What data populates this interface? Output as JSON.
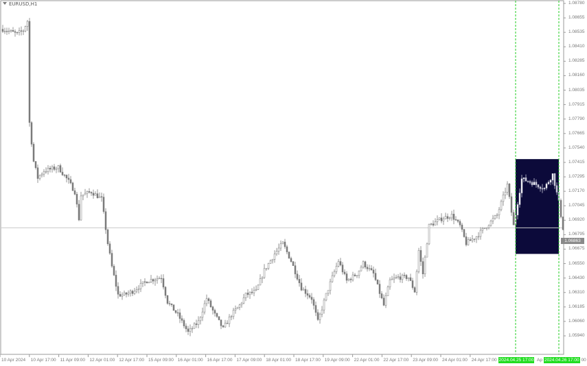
{
  "window": {
    "title": "EURUSD,H1"
  },
  "colors": {
    "candle": "#7a7a7a",
    "candle_in_box": "#c8c8d8",
    "box_fill": "#0c0a3a",
    "vline": "#22cc22",
    "current_price_line": "#c8c8c8",
    "time_highlight": "#22dd22"
  },
  "chart_data": {
    "type": "candlestick",
    "symbol": "EURUSD",
    "timeframe": "H1",
    "ylim": [
      1.0594,
      1.0878
    ],
    "y_ticks": [
      "1.08780",
      "1.08655",
      "1.08535",
      "1.08410",
      "1.08285",
      "1.08160",
      "1.08035",
      "1.07915",
      "1.07790",
      "1.07665",
      "1.07540",
      "1.07415",
      "1.07295",
      "1.07170",
      "1.07045",
      "1.06920",
      "1.06795",
      "1.06675",
      "1.06550",
      "1.06430",
      "1.06310",
      "1.06185",
      "1.06060",
      "1.05940"
    ],
    "x_ticks": [
      "10 Apr 2024",
      "10 Apr 17:00",
      "11 Apr 09:00",
      "12 Apr 01:00",
      "12 Apr 17:00",
      "15 Apr 09:00",
      "16 Apr 01:00",
      "16 Apr 17:00",
      "17 Apr 09:00",
      "18 Apr 01:00",
      "18 Apr 17:00",
      "19 Apr 09:00",
      "22 Apr 01:00",
      "22 Apr 17:00",
      "23 Apr 09:00",
      "24 Apr 01:00",
      "24 Apr 17:00"
    ],
    "x_tick_fragments": [
      "Ap",
      "00"
    ],
    "highlighted_times": [
      "2024.04.25 17:00",
      "2024.04.26 17:00"
    ],
    "current_price": "1.06863",
    "price_path": [
      [
        0,
        1.0856
      ],
      [
        7,
        1.0852
      ],
      [
        10,
        1.0855
      ],
      [
        12,
        1.0863
      ],
      [
        13,
        1.0776
      ],
      [
        15,
        1.0743
      ],
      [
        17,
        1.0729
      ],
      [
        20,
        1.0735
      ],
      [
        27,
        1.0738
      ],
      [
        32,
        1.0726
      ],
      [
        35,
        1.0717
      ],
      [
        37,
        1.0694
      ],
      [
        38,
        1.0714
      ],
      [
        43,
        1.0717
      ],
      [
        48,
        1.0711
      ],
      [
        51,
        1.0673
      ],
      [
        53,
        1.0653
      ],
      [
        56,
        1.0629
      ],
      [
        59,
        1.0629
      ],
      [
        63,
        1.0632
      ],
      [
        70,
        1.0641
      ],
      [
        77,
        1.0644
      ],
      [
        80,
        1.0623
      ],
      [
        85,
        1.0612
      ],
      [
        90,
        1.0597
      ],
      [
        95,
        1.0606
      ],
      [
        99,
        1.0626
      ],
      [
        103,
        1.0612
      ],
      [
        107,
        1.06
      ],
      [
        111,
        1.0612
      ],
      [
        115,
        1.062
      ],
      [
        118,
        1.0629
      ],
      [
        123,
        1.0632
      ],
      [
        127,
        1.065
      ],
      [
        132,
        1.0664
      ],
      [
        136,
        1.0673
      ],
      [
        140,
        1.0658
      ],
      [
        145,
        1.0635
      ],
      [
        150,
        1.0626
      ],
      [
        153,
        1.0606
      ],
      [
        157,
        1.0629
      ],
      [
        160,
        1.0644
      ],
      [
        163,
        1.0658
      ],
      [
        167,
        1.0641
      ],
      [
        172,
        1.0647
      ],
      [
        175,
        1.0656
      ],
      [
        180,
        1.0647
      ],
      [
        185,
        1.062
      ],
      [
        188,
        1.0641
      ],
      [
        192,
        1.0644
      ],
      [
        197,
        1.0644
      ],
      [
        200,
        1.0632
      ],
      [
        202,
        1.0667
      ],
      [
        204,
        1.0647
      ],
      [
        207,
        1.0688
      ],
      [
        213,
        1.0694
      ],
      [
        218,
        1.0697
      ],
      [
        222,
        1.0688
      ],
      [
        225,
        1.0673
      ],
      [
        230,
        1.0679
      ],
      [
        235,
        1.0688
      ],
      [
        240,
        1.0697
      ],
      [
        245,
        1.0723
      ],
      [
        248,
        1.0688
      ],
      [
        252,
        1.0728
      ],
      [
        257,
        1.0725
      ],
      [
        263,
        1.072
      ],
      [
        267,
        1.0732
      ],
      [
        270,
        1.0708
      ],
      [
        272,
        1.0686
      ]
    ],
    "highlight_box": {
      "price_top": 1.0745,
      "price_bottom": 1.0664,
      "time_start": "2024.04.25 17:00",
      "time_end": "2024.04.26 17:00"
    }
  }
}
